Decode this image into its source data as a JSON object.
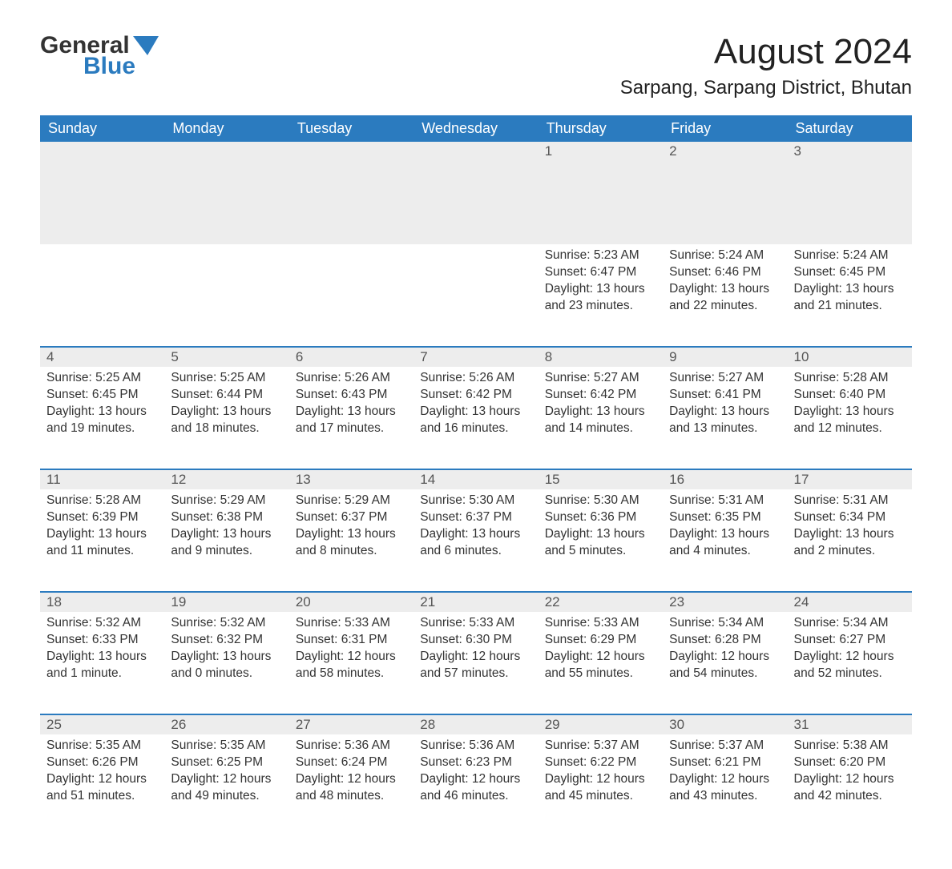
{
  "logo": {
    "text1": "General",
    "text2": "Blue",
    "icon_color": "#2b7bbf",
    "text_color": "#333"
  },
  "title": "August 2024",
  "location": "Sarpang, Sarpang District, Bhutan",
  "colors": {
    "header_bg": "#2b7bbf",
    "header_fg": "#ffffff",
    "daynum_bg": "#ededed",
    "row_border": "#2b7bbf",
    "text": "#333333",
    "page_bg": "#ffffff"
  },
  "font": {
    "family": "Arial",
    "title_size": 44,
    "location_size": 24,
    "header_size": 18,
    "daynum_size": 17,
    "body_size": 15.5
  },
  "weekdays": [
    "Sunday",
    "Monday",
    "Tuesday",
    "Wednesday",
    "Thursday",
    "Friday",
    "Saturday"
  ],
  "weeks": [
    [
      null,
      null,
      null,
      null,
      {
        "day": 1,
        "sunrise": "5:23 AM",
        "sunset": "6:47 PM",
        "daylight": "13 hours and 23 minutes."
      },
      {
        "day": 2,
        "sunrise": "5:24 AM",
        "sunset": "6:46 PM",
        "daylight": "13 hours and 22 minutes."
      },
      {
        "day": 3,
        "sunrise": "5:24 AM",
        "sunset": "6:45 PM",
        "daylight": "13 hours and 21 minutes."
      }
    ],
    [
      {
        "day": 4,
        "sunrise": "5:25 AM",
        "sunset": "6:45 PM",
        "daylight": "13 hours and 19 minutes."
      },
      {
        "day": 5,
        "sunrise": "5:25 AM",
        "sunset": "6:44 PM",
        "daylight": "13 hours and 18 minutes."
      },
      {
        "day": 6,
        "sunrise": "5:26 AM",
        "sunset": "6:43 PM",
        "daylight": "13 hours and 17 minutes."
      },
      {
        "day": 7,
        "sunrise": "5:26 AM",
        "sunset": "6:42 PM",
        "daylight": "13 hours and 16 minutes."
      },
      {
        "day": 8,
        "sunrise": "5:27 AM",
        "sunset": "6:42 PM",
        "daylight": "13 hours and 14 minutes."
      },
      {
        "day": 9,
        "sunrise": "5:27 AM",
        "sunset": "6:41 PM",
        "daylight": "13 hours and 13 minutes."
      },
      {
        "day": 10,
        "sunrise": "5:28 AM",
        "sunset": "6:40 PM",
        "daylight": "13 hours and 12 minutes."
      }
    ],
    [
      {
        "day": 11,
        "sunrise": "5:28 AM",
        "sunset": "6:39 PM",
        "daylight": "13 hours and 11 minutes."
      },
      {
        "day": 12,
        "sunrise": "5:29 AM",
        "sunset": "6:38 PM",
        "daylight": "13 hours and 9 minutes."
      },
      {
        "day": 13,
        "sunrise": "5:29 AM",
        "sunset": "6:37 PM",
        "daylight": "13 hours and 8 minutes."
      },
      {
        "day": 14,
        "sunrise": "5:30 AM",
        "sunset": "6:37 PM",
        "daylight": "13 hours and 6 minutes."
      },
      {
        "day": 15,
        "sunrise": "5:30 AM",
        "sunset": "6:36 PM",
        "daylight": "13 hours and 5 minutes."
      },
      {
        "day": 16,
        "sunrise": "5:31 AM",
        "sunset": "6:35 PM",
        "daylight": "13 hours and 4 minutes."
      },
      {
        "day": 17,
        "sunrise": "5:31 AM",
        "sunset": "6:34 PM",
        "daylight": "13 hours and 2 minutes."
      }
    ],
    [
      {
        "day": 18,
        "sunrise": "5:32 AM",
        "sunset": "6:33 PM",
        "daylight": "13 hours and 1 minute."
      },
      {
        "day": 19,
        "sunrise": "5:32 AM",
        "sunset": "6:32 PM",
        "daylight": "13 hours and 0 minutes."
      },
      {
        "day": 20,
        "sunrise": "5:33 AM",
        "sunset": "6:31 PM",
        "daylight": "12 hours and 58 minutes."
      },
      {
        "day": 21,
        "sunrise": "5:33 AM",
        "sunset": "6:30 PM",
        "daylight": "12 hours and 57 minutes."
      },
      {
        "day": 22,
        "sunrise": "5:33 AM",
        "sunset": "6:29 PM",
        "daylight": "12 hours and 55 minutes."
      },
      {
        "day": 23,
        "sunrise": "5:34 AM",
        "sunset": "6:28 PM",
        "daylight": "12 hours and 54 minutes."
      },
      {
        "day": 24,
        "sunrise": "5:34 AM",
        "sunset": "6:27 PM",
        "daylight": "12 hours and 52 minutes."
      }
    ],
    [
      {
        "day": 25,
        "sunrise": "5:35 AM",
        "sunset": "6:26 PM",
        "daylight": "12 hours and 51 minutes."
      },
      {
        "day": 26,
        "sunrise": "5:35 AM",
        "sunset": "6:25 PM",
        "daylight": "12 hours and 49 minutes."
      },
      {
        "day": 27,
        "sunrise": "5:36 AM",
        "sunset": "6:24 PM",
        "daylight": "12 hours and 48 minutes."
      },
      {
        "day": 28,
        "sunrise": "5:36 AM",
        "sunset": "6:23 PM",
        "daylight": "12 hours and 46 minutes."
      },
      {
        "day": 29,
        "sunrise": "5:37 AM",
        "sunset": "6:22 PM",
        "daylight": "12 hours and 45 minutes."
      },
      {
        "day": 30,
        "sunrise": "5:37 AM",
        "sunset": "6:21 PM",
        "daylight": "12 hours and 43 minutes."
      },
      {
        "day": 31,
        "sunrise": "5:38 AM",
        "sunset": "6:20 PM",
        "daylight": "12 hours and 42 minutes."
      }
    ]
  ],
  "labels": {
    "sunrise": "Sunrise:",
    "sunset": "Sunset:",
    "daylight": "Daylight:"
  }
}
